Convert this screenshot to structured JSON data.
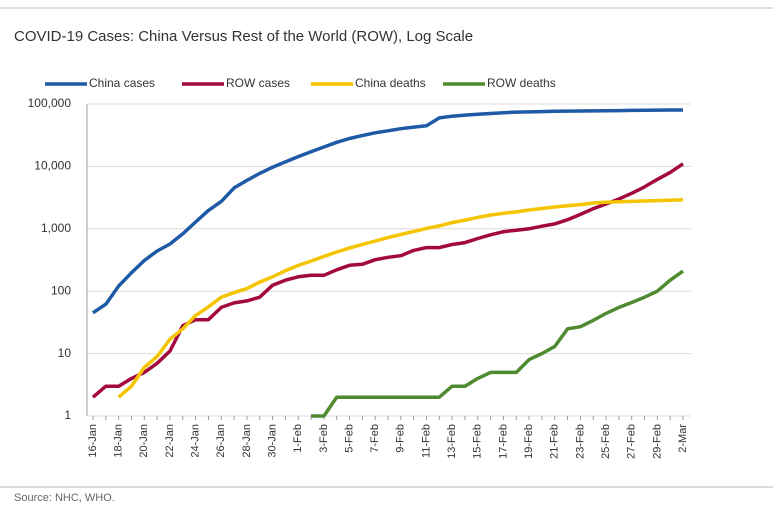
{
  "chart_data": {
    "type": "line",
    "title": "COVID-19 Cases: China Versus Rest of the World (ROW), Log Scale",
    "source": "Source: NHC, WHO.",
    "categories": [
      "16-Jan",
      null,
      "18-Jan",
      null,
      "20-Jan",
      null,
      "22-Jan",
      null,
      "24-Jan",
      null,
      "26-Jan",
      null,
      "28-Jan",
      null,
      "30-Jan",
      null,
      "1-Feb",
      null,
      "3-Feb",
      null,
      "5-Feb",
      null,
      "7-Feb",
      null,
      "9-Feb",
      null,
      "11-Feb",
      null,
      "13-Feb",
      null,
      "15-Feb",
      null,
      "17-Feb",
      null,
      "19-Feb",
      null,
      "21-Feb",
      null,
      "23-Feb",
      null,
      "25-Feb",
      null,
      "27-Feb",
      null,
      "29-Feb",
      null,
      "2-Mar"
    ],
    "log_scale": true,
    "grid": true,
    "ylim": [
      1,
      100000
    ],
    "yticks": [
      1,
      10,
      100,
      {
        "value": 1000,
        "label": "1,000"
      },
      {
        "value": 10000,
        "label": "10,000"
      },
      {
        "value": 100000,
        "label": "100,000"
      }
    ],
    "legend_position": "top",
    "series": [
      {
        "name": "China cases",
        "color": "#1f5aa6",
        "values": [
          45,
          62,
          121,
          198,
          310,
          440,
          571,
          830,
          1287,
          1975,
          2744,
          4515,
          5974,
          7711,
          9692,
          11791,
          14380,
          17205,
          20438,
          24324,
          28018,
          31161,
          34546,
          37198,
          40171,
          42638,
          44653,
          59804,
          63851,
          66492,
          68500,
          70548,
          72436,
          74185,
          74576,
          75465,
          76288,
          76936,
          77150,
          77658,
          78064,
          78497,
          78824,
          79251,
          79824,
          80026,
          80151
        ]
      },
      {
        "name": "ROW cases",
        "color": "#a3093f",
        "values": [
          2,
          3,
          3,
          4,
          5,
          7,
          11,
          28,
          35,
          35,
          55,
          65,
          70,
          80,
          125,
          150,
          170,
          180,
          180,
          220,
          260,
          270,
          320,
          350,
          370,
          450,
          500,
          500,
          560,
          600,
          700,
          800,
          900,
          950,
          1000,
          1100,
          1200,
          1400,
          1700,
          2100,
          2500,
          3000,
          3700,
          4700,
          6200,
          8000,
          11000
        ]
      },
      {
        "name": "China deaths",
        "color": "#f5c400",
        "values": [
          null,
          null,
          2,
          3,
          6,
          9,
          17,
          25,
          41,
          56,
          80,
          95,
          110,
          140,
          170,
          213,
          259,
          304,
          361,
          425,
          490,
          563,
          636,
          722,
          811,
          908,
          1016,
          1113,
          1259,
          1380,
          1523,
          1665,
          1770,
          1868,
          2004,
          2118,
          2236,
          2345,
          2442,
          2592,
          2663,
          2715,
          2744,
          2788,
          2835,
          2870,
          2912
        ]
      },
      {
        "name": "ROW deaths",
        "color": "#4e8a2f",
        "values": [
          null,
          null,
          null,
          null,
          null,
          null,
          null,
          null,
          null,
          null,
          null,
          null,
          null,
          null,
          null,
          null,
          null,
          1,
          1,
          2,
          2,
          2,
          2,
          2,
          2,
          2,
          2,
          2,
          3,
          3,
          4,
          5,
          5,
          5,
          8,
          10,
          13,
          25,
          27,
          34,
          44,
          55,
          66,
          80,
          100,
          150,
          210
        ]
      }
    ]
  }
}
